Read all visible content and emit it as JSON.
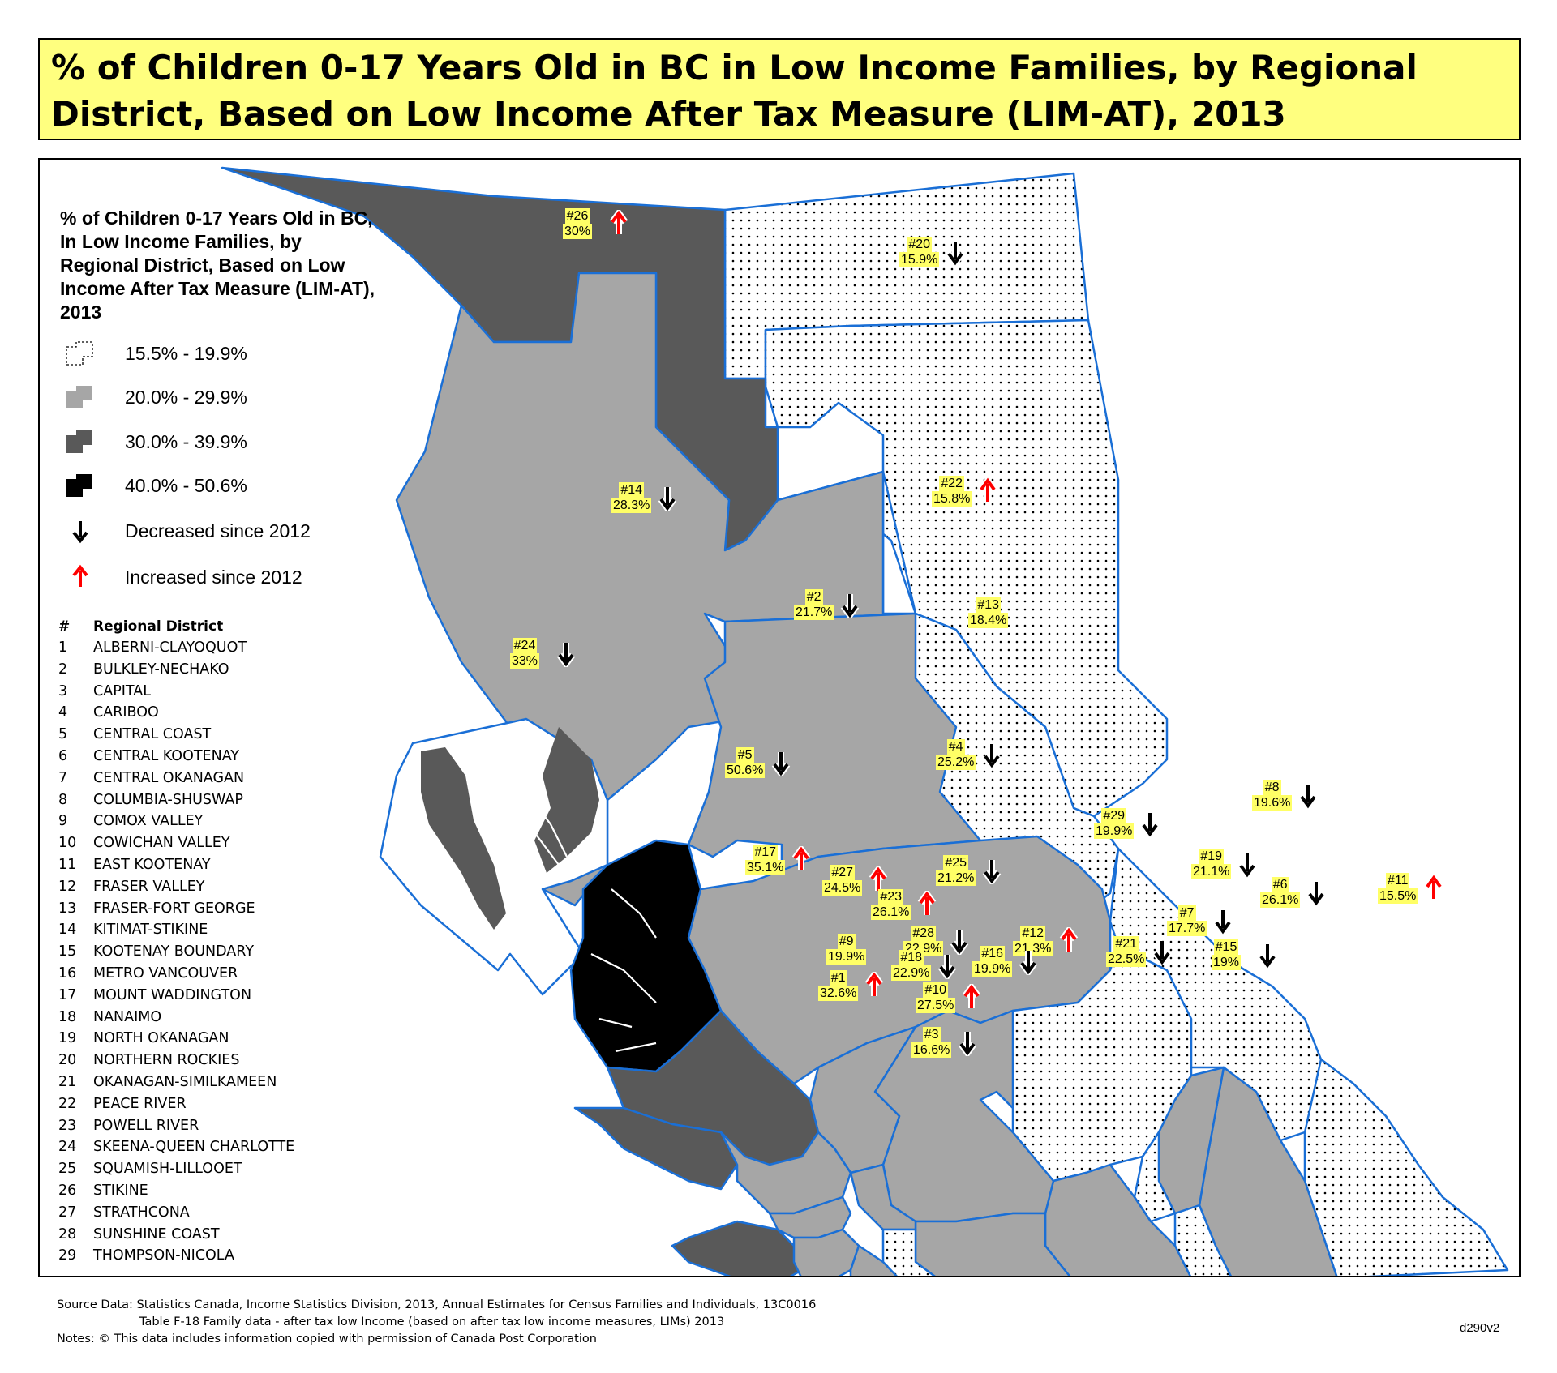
{
  "title": "% of Children 0-17 Years Old in BC in Low Income Families, by Regional District, Based on Low Income After Tax Measure (LIM-AT), 2013",
  "legend": {
    "title": "% of Children 0-17 Years Old in BC, In Low Income Families, by Regional District, Based on Low Income After Tax Measure (LIM-AT), 2013",
    "classes": [
      {
        "label": "15.5% - 19.9%",
        "fill": "dots",
        "color": "#ffffff"
      },
      {
        "label": "20.0% - 29.9%",
        "fill": "solid",
        "color": "#a6a6a6"
      },
      {
        "label": "30.0% - 39.9%",
        "fill": "solid",
        "color": "#595959"
      },
      {
        "label": "40.0% - 50.6%",
        "fill": "solid",
        "color": "#000000"
      }
    ],
    "decreased_label": "Decreased since 2012",
    "increased_label": "Increased since 2012",
    "decrease_color": "#000000",
    "increase_color": "#ff0000"
  },
  "district_table": {
    "header_num": "#",
    "header_name": "Regional District",
    "rows": [
      {
        "num": "1",
        "name": "ALBERNI-CLAYOQUOT"
      },
      {
        "num": "2",
        "name": "BULKLEY-NECHAKO"
      },
      {
        "num": "3",
        "name": "CAPITAL"
      },
      {
        "num": "4",
        "name": "CARIBOO"
      },
      {
        "num": "5",
        "name": "CENTRAL COAST"
      },
      {
        "num": "6",
        "name": "CENTRAL KOOTENAY"
      },
      {
        "num": "7",
        "name": "CENTRAL OKANAGAN"
      },
      {
        "num": "8",
        "name": "COLUMBIA-SHUSWAP"
      },
      {
        "num": "9",
        "name": "COMOX VALLEY"
      },
      {
        "num": "10",
        "name": "COWICHAN VALLEY"
      },
      {
        "num": "11",
        "name": "EAST KOOTENAY"
      },
      {
        "num": "12",
        "name": "FRASER VALLEY"
      },
      {
        "num": "13",
        "name": "FRASER-FORT GEORGE"
      },
      {
        "num": "14",
        "name": "KITIMAT-STIKINE"
      },
      {
        "num": "15",
        "name": "KOOTENAY BOUNDARY"
      },
      {
        "num": "16",
        "name": "METRO VANCOUVER"
      },
      {
        "num": "17",
        "name": "MOUNT WADDINGTON"
      },
      {
        "num": "18",
        "name": "NANAIMO"
      },
      {
        "num": "19",
        "name": "NORTH OKANAGAN"
      },
      {
        "num": "20",
        "name": "NORTHERN ROCKIES"
      },
      {
        "num": "21",
        "name": "OKANAGAN-SIMILKAMEEN"
      },
      {
        "num": "22",
        "name": "PEACE RIVER"
      },
      {
        "num": "23",
        "name": "POWELL RIVER"
      },
      {
        "num": "24",
        "name": "SKEENA-QUEEN CHARLOTTE"
      },
      {
        "num": "25",
        "name": "SQUAMISH-LILLOOET"
      },
      {
        "num": "26",
        "name": "STIKINE"
      },
      {
        "num": "27",
        "name": "STRATHCONA"
      },
      {
        "num": "28",
        "name": "SUNSHINE COAST"
      },
      {
        "num": "29",
        "name": "THOMPSON-NICOLA"
      }
    ]
  },
  "map_labels": [
    {
      "code": "#26",
      "value": "30%",
      "trend": "increased"
    },
    {
      "code": "#20",
      "value": "15.9%",
      "trend": "decreased"
    },
    {
      "code": "#14",
      "value": "28.3%",
      "trend": "decreased"
    },
    {
      "code": "#22",
      "value": "15.8%",
      "trend": "increased"
    },
    {
      "code": "#2",
      "value": "21.7%",
      "trend": "decreased"
    },
    {
      "code": "#13",
      "value": "18.4%",
      "trend": "none"
    },
    {
      "code": "#24",
      "value": "33%",
      "trend": "decreased"
    },
    {
      "code": "#4",
      "value": "25.2%",
      "trend": "decreased"
    },
    {
      "code": "#5",
      "value": "50.6%",
      "trend": "decreased"
    },
    {
      "code": "#8",
      "value": "19.6%",
      "trend": "decreased"
    },
    {
      "code": "#29",
      "value": "19.9%",
      "trend": "decreased"
    },
    {
      "code": "#17",
      "value": "35.1%",
      "trend": "increased"
    },
    {
      "code": "#27",
      "value": "24.5%",
      "trend": "increased"
    },
    {
      "code": "#25",
      "value": "21.2%",
      "trend": "decreased"
    },
    {
      "code": "#19",
      "value": "21.1%",
      "trend": "decreased"
    },
    {
      "code": "#6",
      "value": "26.1%",
      "trend": "decreased"
    },
    {
      "code": "#11",
      "value": "15.5%",
      "trend": "increased"
    },
    {
      "code": "#23",
      "value": "26.1%",
      "trend": "increased"
    },
    {
      "code": "#7",
      "value": "17.7%",
      "trend": "decreased"
    },
    {
      "code": "#12",
      "value": "21.3%",
      "trend": "increased"
    },
    {
      "code": "#21",
      "value": "22.5%",
      "trend": "decreased"
    },
    {
      "code": "#15",
      "value": "19%",
      "trend": "decreased"
    },
    {
      "code": "#9",
      "value": "19.9%",
      "trend": "none"
    },
    {
      "code": "#28",
      "value": "22.9%",
      "trend": "decreased"
    },
    {
      "code": "#18",
      "value": "22.9%",
      "trend": "decreased"
    },
    {
      "code": "#16",
      "value": "19.9%",
      "trend": "decreased"
    },
    {
      "code": "#1",
      "value": "32.6%",
      "trend": "increased"
    },
    {
      "code": "#10",
      "value": "27.5%",
      "trend": "increased"
    },
    {
      "code": "#3",
      "value": "16.6%",
      "trend": "decreased"
    }
  ],
  "source": {
    "line1": "Source Data: Statistics Canada, Income Statistics Division, 2013, Annual Estimates for Census Families and Individuals, 13C0016",
    "line2": "Table F-18 Family data - after tax low Income (based on after tax low income measures, LIMs) 2013",
    "line3": "Notes: © This data includes information copied with permission of Canada Post Corporation"
  },
  "doc_id": "d290v2"
}
